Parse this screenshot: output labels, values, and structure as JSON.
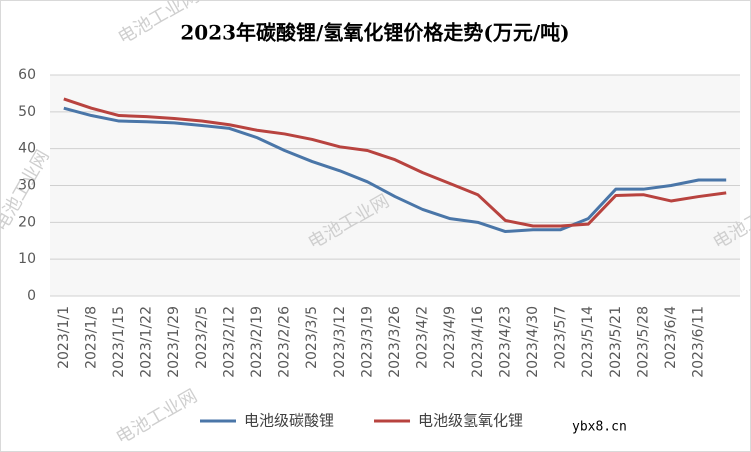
{
  "chart_data": {
    "type": "line",
    "title": "2023年碳酸锂/氢氧化锂价格走势(万元/吨)",
    "categories": [
      "2023/1/1",
      "2023/1/8",
      "2023/1/15",
      "2023/1/22",
      "2023/1/29",
      "2023/2/5",
      "2023/2/12",
      "2023/2/19",
      "2023/2/26",
      "2023/3/5",
      "2023/3/12",
      "2023/3/19",
      "2023/3/26",
      "2023/4/2",
      "2023/4/9",
      "2023/4/16",
      "2023/4/23",
      "2023/4/30",
      "2023/5/7",
      "2023/5/14",
      "2023/5/21",
      "2023/5/28",
      "2023/6/4",
      "2023/6/11",
      null
    ],
    "series": [
      {
        "name": "电池级碳酸锂",
        "color": "#4a76a8",
        "values": [
          51,
          49,
          47.5,
          47.3,
          47,
          46.3,
          45.5,
          43,
          39.5,
          36.5,
          34,
          31,
          27,
          23.5,
          21,
          20,
          17.5,
          18,
          18,
          21,
          29,
          29,
          30,
          31.5,
          31.5
        ]
      },
      {
        "name": "电池级氢氧化锂",
        "color": "#b8433f",
        "values": [
          53.5,
          51,
          49,
          48.7,
          48.2,
          47.5,
          46.5,
          45,
          44,
          42.5,
          40.5,
          39.5,
          37,
          33.5,
          30.5,
          27.5,
          20.5,
          19,
          19,
          19.5,
          27.3,
          27.5,
          25.8,
          27,
          28
        ]
      }
    ],
    "ylim": [
      0,
      60
    ],
    "yticks": [
      0,
      10,
      20,
      30,
      40,
      50,
      60
    ],
    "grid": true,
    "legend": "bottom",
    "watermarks": [
      "电池工业网",
      "电池工业网",
      "电池工业网",
      "电池工业网",
      "电池工业网",
      "ybx8.cn"
    ]
  }
}
